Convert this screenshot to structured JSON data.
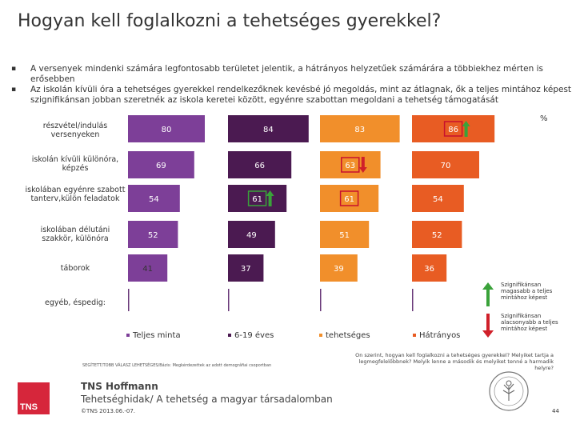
{
  "title": "Hogyan kell foglalkozni a tehetséges gyerekkel?",
  "bullets": [
    "A versenyek mindenki számára legfontosabb területet jelentik, a hátrányos helyzetűek számárára a többiekhez mérten is erősebben",
    "Az iskolán kívüli óra a tehetséges gyerekkel rendelkezőknek kevésbé jó megoldás, mint az átlagnak, ők a teljes mintához képest szignifikánsan jobban szeretnék az iskola keretei között, egyénre szabottan megoldani a tehetség támogatását"
  ],
  "unit": "%",
  "colors": {
    "teljes": "#7d3f98",
    "hat19": "#4b1a51",
    "tehetseges": "#f18f2b",
    "hatranyos": "#e85c23",
    "up_arrow": "#3aa23a",
    "down_arrow": "#d0202a",
    "box_red": "#c8102e",
    "box_green": "#3aa23a"
  },
  "chart_data": {
    "type": "bar",
    "categories": [
      "részvétel/indulás versenyeken",
      "iskolán kívüli különóra, képzés",
      "iskolában egyénre szabott tanterv,külön feladatok",
      "iskolában délutáni szakkör, különóra",
      "táborok",
      "egyéb, éspedig:"
    ],
    "series": [
      {
        "name": "Teljes minta",
        "values": [
          80,
          69,
          54,
          52,
          41,
          1
        ]
      },
      {
        "name": "6-19 éves",
        "values": [
          84,
          66,
          61,
          49,
          37,
          1
        ]
      },
      {
        "name": "tehetséges",
        "values": [
          83,
          63,
          61,
          51,
          39,
          1
        ]
      },
      {
        "name": "Hátrányos",
        "values": [
          86,
          70,
          54,
          52,
          36,
          1
        ]
      }
    ],
    "value_labels": [
      [
        "80",
        "84",
        "83",
        "86"
      ],
      [
        "69",
        "66",
        "63",
        "70"
      ],
      [
        "54",
        "61",
        "61",
        "54"
      ],
      [
        "52",
        "49",
        "51",
        "52"
      ],
      [
        "41",
        "37",
        "39",
        "36"
      ],
      [
        "",
        "",
        "",
        ""
      ]
    ],
    "highlights": [
      {
        "row": 0,
        "series": 3,
        "sig": "up",
        "box": "red"
      },
      {
        "row": 1,
        "series": 2,
        "sig": "down",
        "box": "red"
      },
      {
        "row": 2,
        "series": 1,
        "sig": "up",
        "box": "green"
      },
      {
        "row": 2,
        "series": 2,
        "sig": "none",
        "box": "red"
      }
    ],
    "xlim": [
      0,
      100
    ],
    "legend": "bottom",
    "grid": false
  },
  "sig_legend": {
    "up": "Szignifikánsan magasabb a teljes mintához képest",
    "down": "Szignifikánsan alacsonyabb a teljes mintához képest"
  },
  "source_note": "SEGÍTETT/TOBB VÁLASZ LEHETSÉGES/Bázis: Megkérdezettek az adott demográfiai csoportban",
  "question": "On szerint, hogyan kell foglalkozni a tehetséges gyerekkel? Melyiket tartja a legmegfelelőbbnek? Melyik lenne a második és melyiket tenné a harmadik helyre?",
  "logo_text": "TNS",
  "company": "TNS Hoffmann",
  "subtitle": "Tehetséghidak/ A tehetség a magyar társadalomban",
  "copyright": "©TNS 2013.06.-07.",
  "page_number": "44"
}
